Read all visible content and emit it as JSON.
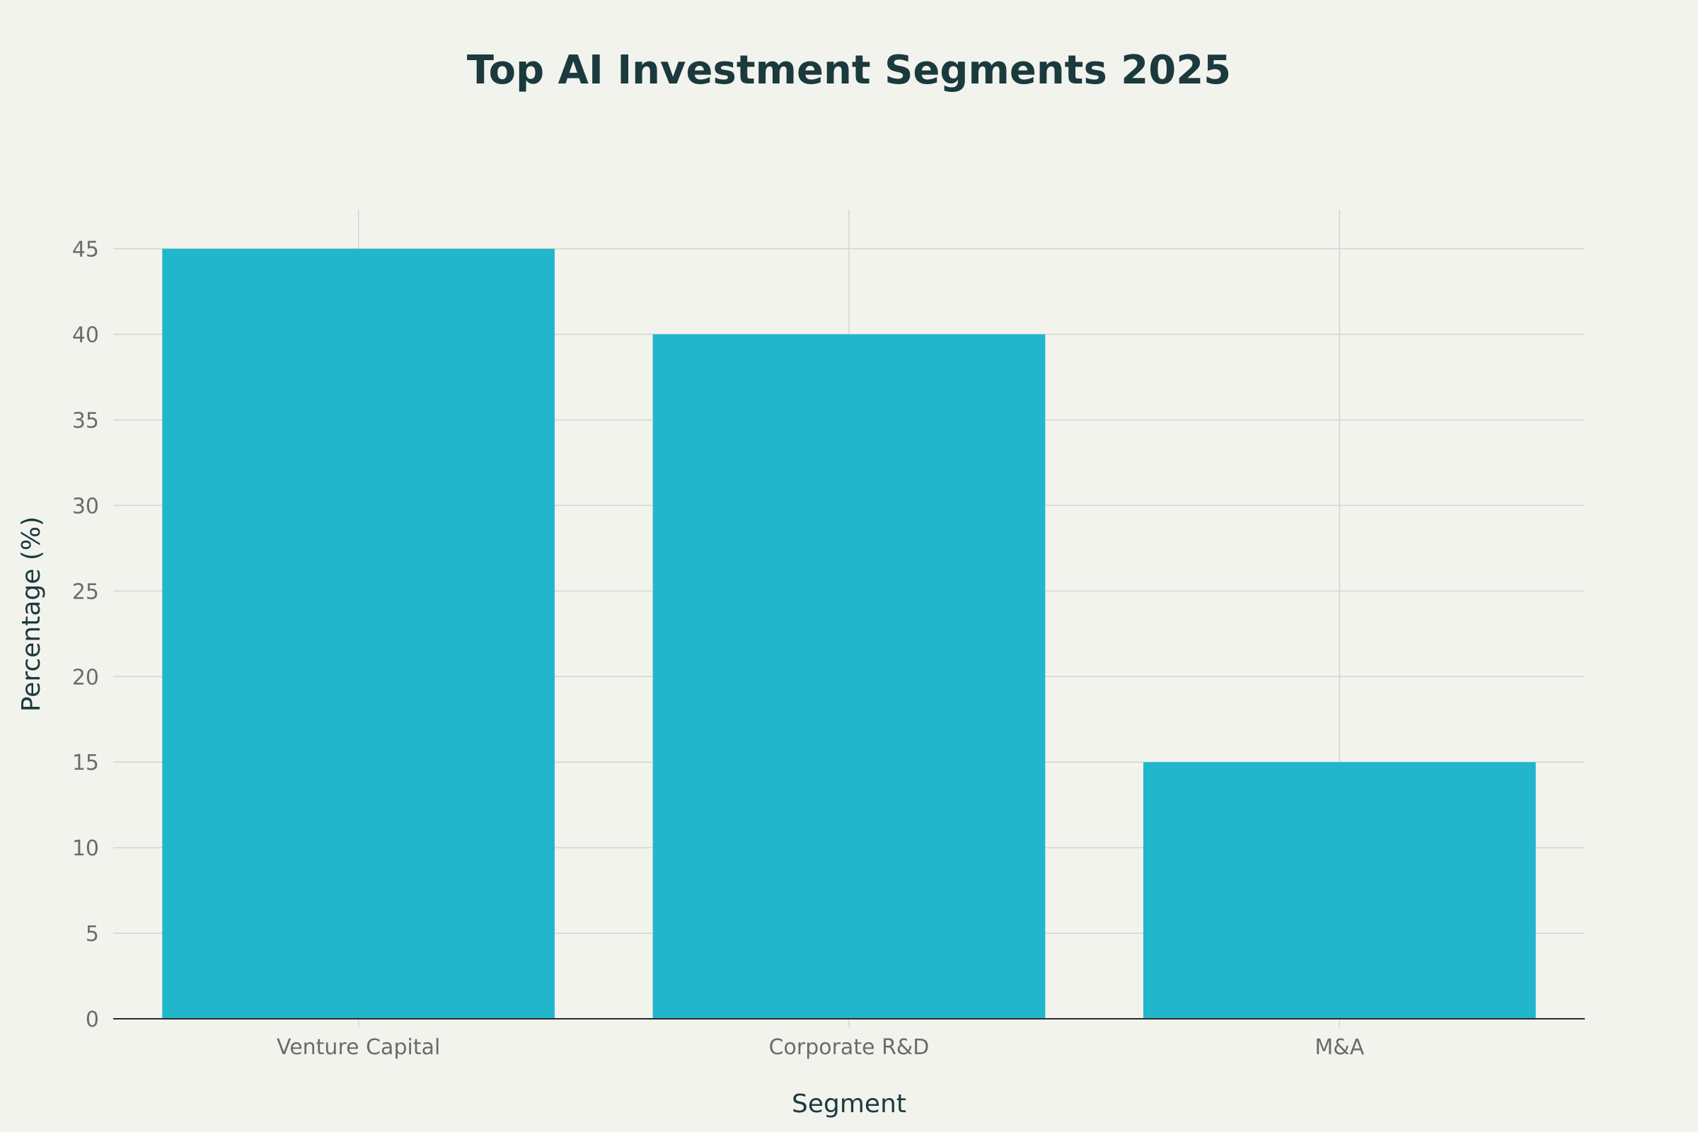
{
  "chart_data": {
    "type": "bar",
    "title": "Top AI Investment Segments 2025",
    "xlabel": "Segment",
    "ylabel": "Percentage (%)",
    "categories": [
      "Venture Capital",
      "Corporate R&D",
      "M&A"
    ],
    "values": [
      45,
      40,
      15
    ],
    "ylim": [
      0,
      47.3
    ],
    "yticks": [
      0,
      5,
      10,
      15,
      20,
      25,
      30,
      35,
      40,
      45
    ],
    "grid": true,
    "legend": false,
    "colors": {
      "background": "#f3f3ee",
      "bar": "#21b6cb",
      "grid": "#d4d4d0",
      "axis_line": "#2b2b2b",
      "title": "#1b3a3d",
      "tick": "#6b6b6b"
    }
  }
}
